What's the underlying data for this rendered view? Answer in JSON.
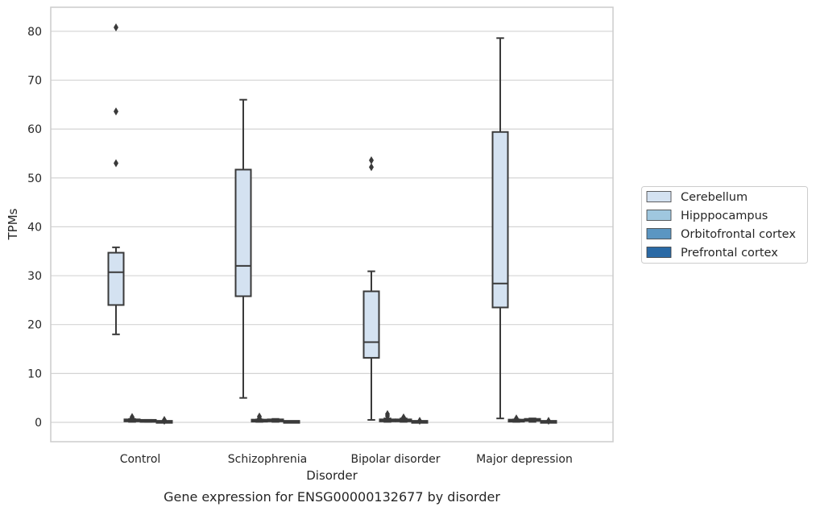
{
  "chart_data": {
    "type": "box",
    "title": "",
    "caption": "Gene expression for ENSG00000132677 by disorder",
    "xlabel": "Disorder",
    "ylabel": "TPMs",
    "ylim": [
      -4,
      85
    ],
    "yticks": [
      0,
      10,
      20,
      30,
      40,
      50,
      60,
      70,
      80
    ],
    "grid": "horizontal",
    "legend_position": "right",
    "categories": [
      "Control",
      "Schizophrenia",
      "Bipolar disorder",
      "Major depression"
    ],
    "series": [
      {
        "name": "Cerebellum",
        "color": "#d4e2f1",
        "boxes": [
          {
            "whislo": 18.0,
            "q1": 24.0,
            "med": 30.7,
            "q3": 34.7,
            "whishi": 35.8,
            "fliers": [
              53.0,
              63.6,
              80.8
            ]
          },
          {
            "whislo": 5.0,
            "q1": 25.8,
            "med": 32.0,
            "q3": 51.7,
            "whishi": 66.0,
            "fliers": []
          },
          {
            "whislo": 0.5,
            "q1": 13.2,
            "med": 16.4,
            "q3": 26.8,
            "whishi": 30.9,
            "fliers": [
              52.2,
              53.6
            ]
          },
          {
            "whislo": 0.8,
            "q1": 23.5,
            "med": 28.4,
            "q3": 59.4,
            "whishi": 78.6,
            "fliers": []
          }
        ]
      },
      {
        "name": "Hipppocampus",
        "color": "#9fc7df",
        "boxes": [
          {
            "whislo": 0.1,
            "q1": 0.2,
            "med": 0.4,
            "q3": 0.6,
            "whishi": 0.7,
            "fliers": [
              0.9,
              1.1
            ]
          },
          {
            "whislo": 0.1,
            "q1": 0.2,
            "med": 0.3,
            "q3": 0.5,
            "whishi": 0.6,
            "fliers": [
              0.8,
              1.2
            ]
          },
          {
            "whislo": 0.1,
            "q1": 0.2,
            "med": 0.4,
            "q3": 0.6,
            "whishi": 0.8,
            "fliers": [
              1.3,
              1.7
            ]
          },
          {
            "whislo": 0.1,
            "q1": 0.2,
            "med": 0.3,
            "q3": 0.5,
            "whishi": 0.6,
            "fliers": [
              0.8
            ]
          }
        ]
      },
      {
        "name": "Orbitofrontal cortex",
        "color": "#5b96c2",
        "boxes": [
          {
            "whislo": 0.1,
            "q1": 0.2,
            "med": 0.3,
            "q3": 0.4,
            "whishi": 0.5,
            "fliers": []
          },
          {
            "whislo": 0.1,
            "q1": 0.2,
            "med": 0.4,
            "q3": 0.6,
            "whishi": 0.7,
            "fliers": []
          },
          {
            "whislo": 0.1,
            "q1": 0.2,
            "med": 0.4,
            "q3": 0.6,
            "whishi": 0.8,
            "fliers": [
              1.0
            ]
          },
          {
            "whislo": 0.1,
            "q1": 0.3,
            "med": 0.5,
            "q3": 0.7,
            "whishi": 0.8,
            "fliers": []
          }
        ]
      },
      {
        "name": "Prefrontal cortex",
        "color": "#2a6aa6",
        "boxes": [
          {
            "whislo": 0.0,
            "q1": 0.05,
            "med": 0.1,
            "q3": 0.15,
            "whishi": 0.2,
            "fliers": [
              0.3,
              0.5
            ]
          },
          {
            "whislo": 0.0,
            "q1": 0.05,
            "med": 0.1,
            "q3": 0.15,
            "whishi": 0.2,
            "fliers": []
          },
          {
            "whislo": 0.0,
            "q1": 0.05,
            "med": 0.1,
            "q3": 0.15,
            "whishi": 0.2,
            "fliers": [
              0.3
            ]
          },
          {
            "whislo": 0.0,
            "q1": 0.05,
            "med": 0.1,
            "q3": 0.15,
            "whishi": 0.2,
            "fliers": [
              0.3
            ]
          }
        ]
      }
    ]
  }
}
